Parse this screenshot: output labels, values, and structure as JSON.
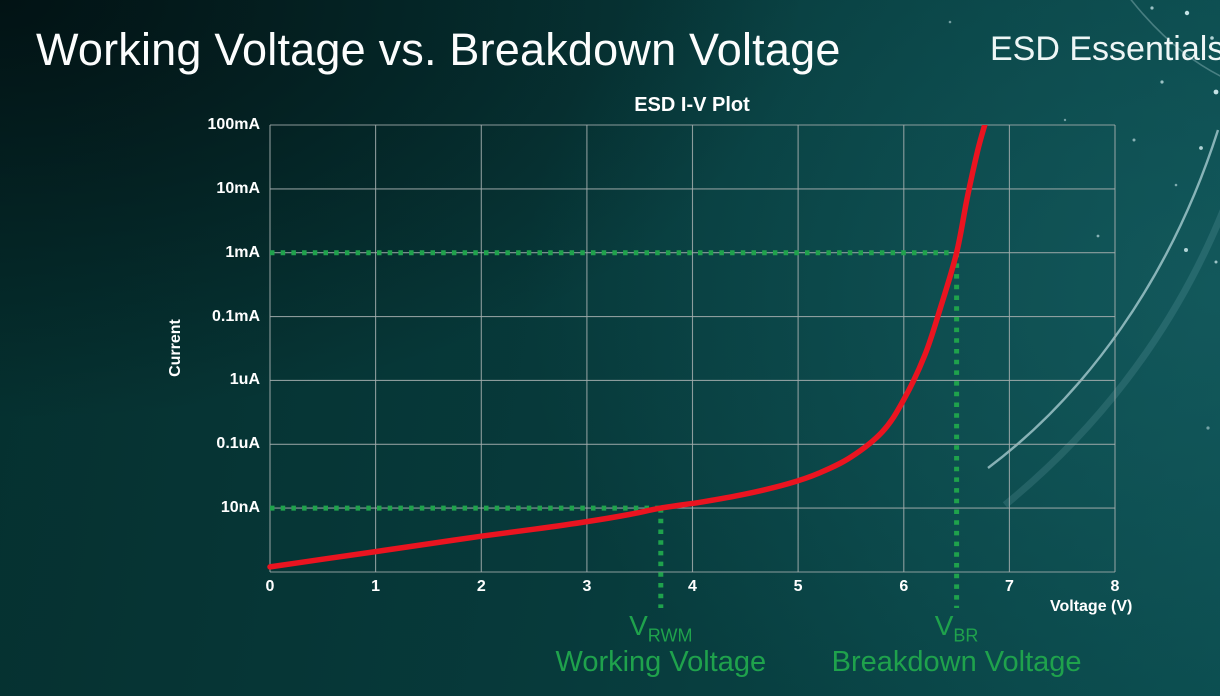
{
  "header": {
    "title": "Working Voltage vs. Breakdown Voltage",
    "brand": "ESD Essentials"
  },
  "chart_data": {
    "type": "line",
    "title": "ESD I-V Plot",
    "xlabel": "Voltage (V)",
    "ylabel": "Current",
    "xlim": [
      0,
      8
    ],
    "x_ticks": [
      0,
      1,
      2,
      3,
      4,
      5,
      6,
      7,
      8
    ],
    "y_scale": "log-decades",
    "y_tick_labels": [
      "100mA",
      "10mA",
      "1mA",
      "0.1mA",
      "1uA",
      "0.1uA",
      "10nA"
    ],
    "y_row_note": "series y values are decade rows above the x-axis baseline: 1=10nA, 2=0.1uA, 3=1uA, 4=0.1mA, 5=1mA, 6=10mA, 7=100mA",
    "grid": true,
    "legend": "none",
    "series": [
      {
        "name": "ESD device I-V curve",
        "color": "#ea1420",
        "points": [
          [
            0,
            0.08
          ],
          [
            0.5,
            0.2
          ],
          [
            1,
            0.32
          ],
          [
            1.5,
            0.44
          ],
          [
            2,
            0.56
          ],
          [
            2.5,
            0.67
          ],
          [
            3,
            0.79
          ],
          [
            3.4,
            0.9
          ],
          [
            3.7,
            1
          ],
          [
            4.1,
            1.1
          ],
          [
            4.5,
            1.22
          ],
          [
            4.9,
            1.38
          ],
          [
            5.2,
            1.55
          ],
          [
            5.5,
            1.8
          ],
          [
            5.8,
            2.2
          ],
          [
            6,
            2.7
          ],
          [
            6.2,
            3.4
          ],
          [
            6.35,
            4.15
          ],
          [
            6.5,
            5
          ],
          [
            6.6,
            5.85
          ],
          [
            6.7,
            6.6
          ],
          [
            6.77,
            7.02
          ]
        ]
      }
    ],
    "markers": [
      {
        "name": "working-voltage",
        "symbol": "V",
        "subscript": "RWM",
        "caption": "Working Voltage",
        "voltage": 3.7,
        "row": 1,
        "current_label": "10nA"
      },
      {
        "name": "breakdown-voltage",
        "symbol": "V",
        "subscript": "BR",
        "caption": "Breakdown Voltage",
        "voltage": 6.5,
        "row": 5,
        "current_label": "1mA"
      }
    ],
    "colors": {
      "curve_red": "#ea1420",
      "marker_green": "#1fa24c",
      "grid": "#a3adad"
    }
  }
}
